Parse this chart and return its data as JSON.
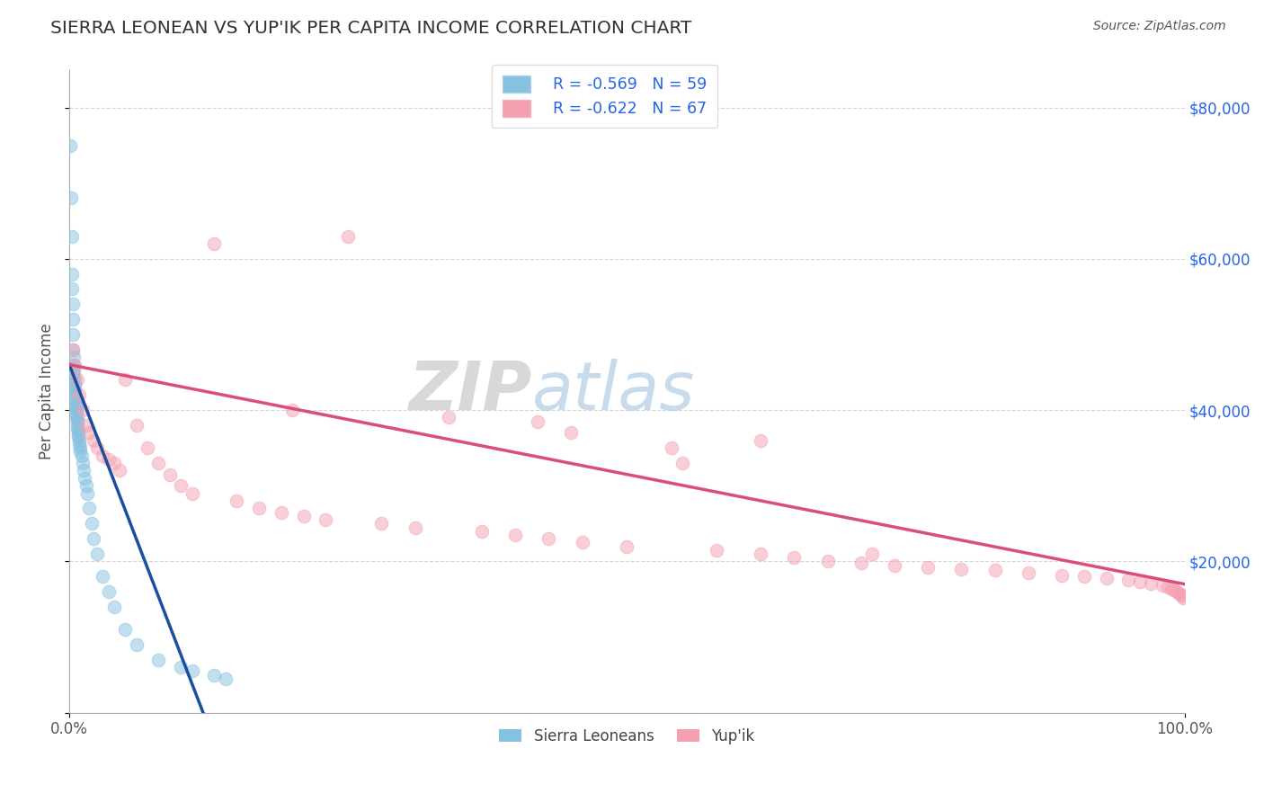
{
  "title": "SIERRA LEONEAN VS YUP'IK PER CAPITA INCOME CORRELATION CHART",
  "source_text": "Source: ZipAtlas.com",
  "ylabel": "Per Capita Income",
  "watermark_gray": "ZIP",
  "watermark_blue": "atlas",
  "xlim": [
    0,
    1
  ],
  "ylim": [
    0,
    85000
  ],
  "yticks": [
    0,
    20000,
    40000,
    60000,
    80000
  ],
  "ytick_labels": [
    "",
    "$20,000",
    "$40,000",
    "$60,000",
    "$80,000"
  ],
  "xtick_labels": [
    "0.0%",
    "100.0%"
  ],
  "legend_R1": "R = -0.569",
  "legend_N1": "N = 59",
  "legend_R2": "R = -0.622",
  "legend_N2": "N = 67",
  "label1": "Sierra Leoneans",
  "label2": "Yup'ik",
  "blue_color": "#85c1e0",
  "pink_color": "#f4a0b0",
  "line_blue": "#1a4f9e",
  "line_pink": "#d94f7a",
  "legend_R_color": "#2563eb",
  "background_color": "#ffffff",
  "grid_color": "#cccccc",
  "sierra_x": [
    0.001,
    0.0015,
    0.002,
    0.002,
    0.0025,
    0.003,
    0.003,
    0.003,
    0.003,
    0.004,
    0.004,
    0.004,
    0.004,
    0.004,
    0.005,
    0.005,
    0.005,
    0.005,
    0.005,
    0.005,
    0.005,
    0.006,
    0.006,
    0.006,
    0.006,
    0.006,
    0.006,
    0.006,
    0.007,
    0.007,
    0.007,
    0.007,
    0.008,
    0.008,
    0.008,
    0.009,
    0.009,
    0.01,
    0.01,
    0.011,
    0.012,
    0.013,
    0.014,
    0.015,
    0.016,
    0.018,
    0.02,
    0.022,
    0.025,
    0.03,
    0.035,
    0.04,
    0.05,
    0.06,
    0.08,
    0.1,
    0.11,
    0.13,
    0.14
  ],
  "sierra_y": [
    75000,
    68000,
    63000,
    58000,
    56000,
    54000,
    52000,
    50000,
    48000,
    47000,
    46000,
    45500,
    45000,
    44500,
    44000,
    43500,
    43200,
    42800,
    42500,
    42000,
    41500,
    41200,
    40800,
    40500,
    40200,
    40000,
    39500,
    39000,
    38800,
    38500,
    38000,
    37500,
    37200,
    36800,
    36500,
    36000,
    35500,
    35000,
    34500,
    34000,
    33000,
    32000,
    31000,
    30000,
    29000,
    27000,
    25000,
    23000,
    21000,
    18000,
    16000,
    14000,
    11000,
    9000,
    7000,
    6000,
    5500,
    5000,
    4500
  ],
  "yupik_x": [
    0.003,
    0.005,
    0.007,
    0.009,
    0.012,
    0.015,
    0.018,
    0.022,
    0.025,
    0.03,
    0.035,
    0.04,
    0.045,
    0.05,
    0.06,
    0.07,
    0.08,
    0.09,
    0.1,
    0.11,
    0.13,
    0.15,
    0.17,
    0.19,
    0.21,
    0.23,
    0.25,
    0.28,
    0.31,
    0.34,
    0.37,
    0.4,
    0.43,
    0.46,
    0.5,
    0.54,
    0.58,
    0.62,
    0.65,
    0.68,
    0.71,
    0.74,
    0.77,
    0.8,
    0.83,
    0.86,
    0.89,
    0.91,
    0.93,
    0.95,
    0.96,
    0.97,
    0.98,
    0.985,
    0.988,
    0.991,
    0.993,
    0.995,
    0.997,
    0.998,
    0.999,
    0.2,
    0.45,
    0.55,
    0.62,
    0.72,
    0.42
  ],
  "yupik_y": [
    48000,
    46000,
    44000,
    42000,
    40000,
    38000,
    37000,
    36000,
    35000,
    34000,
    33500,
    33000,
    32000,
    44000,
    38000,
    35000,
    33000,
    31500,
    30000,
    29000,
    62000,
    28000,
    27000,
    26500,
    26000,
    25500,
    63000,
    25000,
    24500,
    39000,
    24000,
    23500,
    23000,
    22500,
    22000,
    35000,
    21500,
    21000,
    20500,
    20000,
    19800,
    19500,
    19200,
    19000,
    18800,
    18500,
    18200,
    18000,
    17800,
    17500,
    17300,
    17100,
    16800,
    16600,
    16400,
    16200,
    16000,
    15800,
    15600,
    15400,
    15200,
    40000,
    37000,
    33000,
    36000,
    21000,
    38500
  ]
}
